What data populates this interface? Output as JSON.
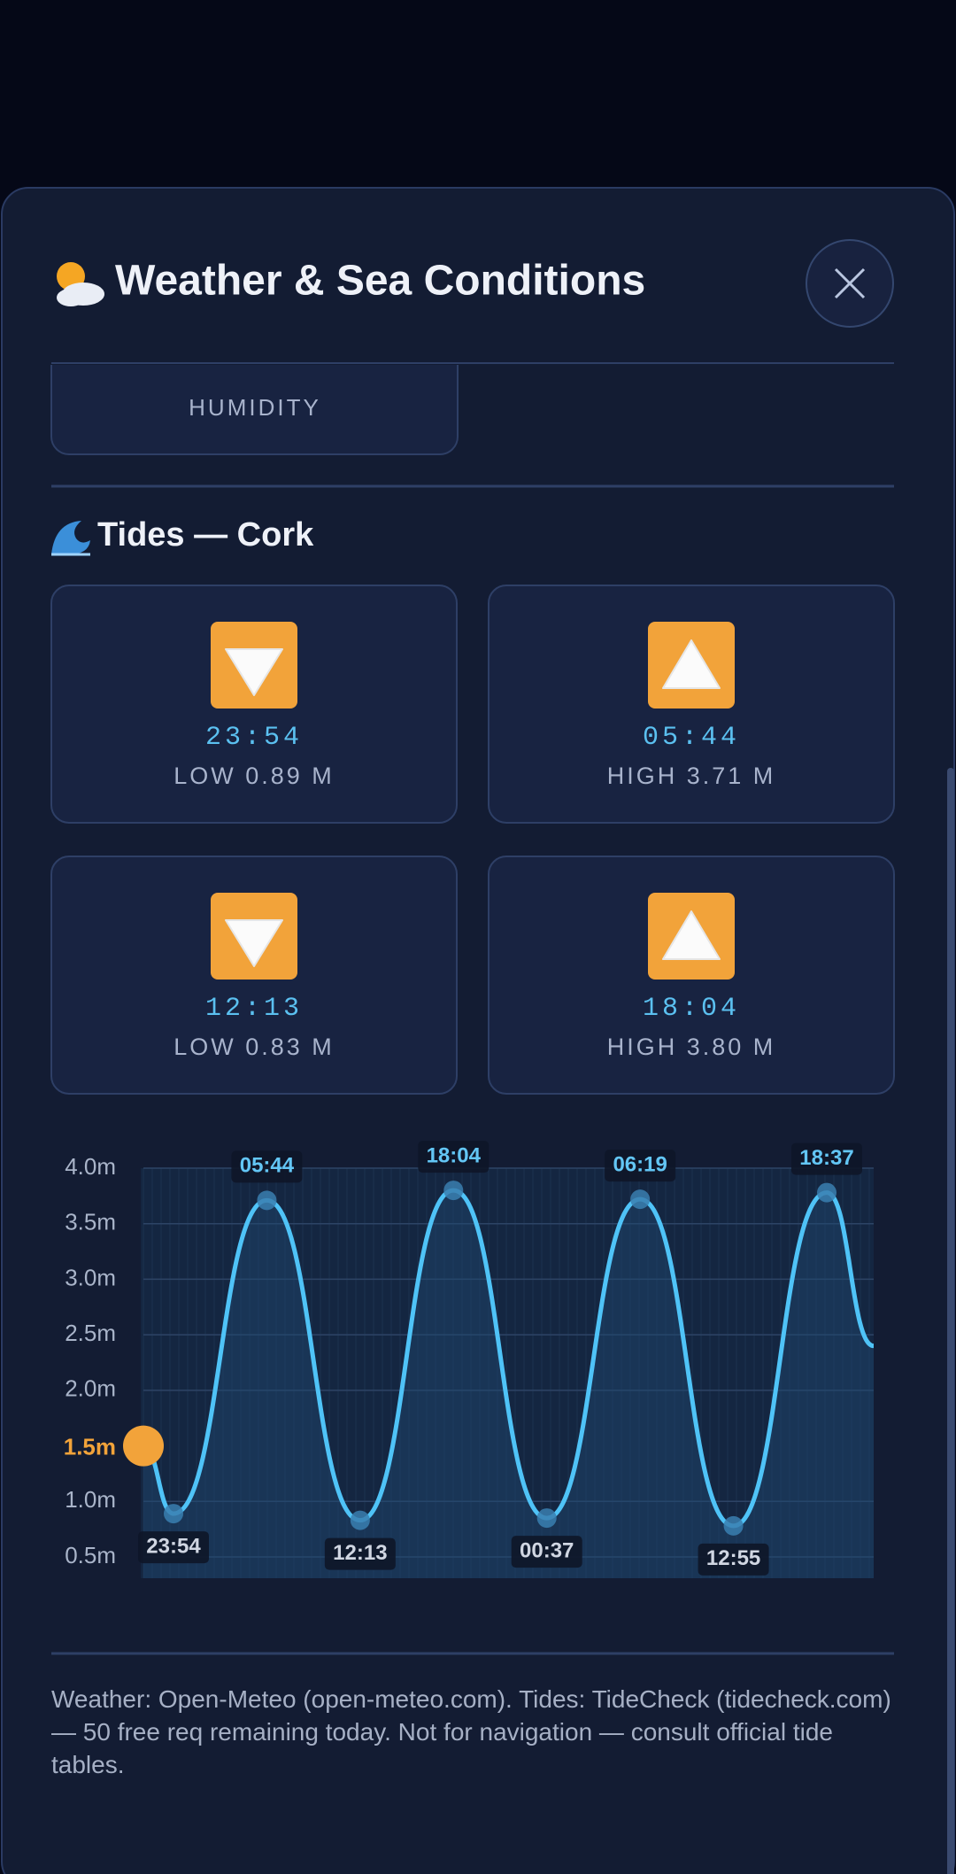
{
  "header": {
    "title": "Weather & Sea Conditions"
  },
  "humidity_card": {
    "label": "HUMIDITY"
  },
  "tides": {
    "title": "Tides — Cork",
    "cards": [
      {
        "time": "23:54",
        "label": "LOW 0.89 M"
      },
      {
        "time": "05:44",
        "label": "HIGH 3.71 M"
      },
      {
        "time": "12:13",
        "label": "LOW 0.83 M"
      },
      {
        "time": "18:04",
        "label": "HIGH 3.80 M"
      }
    ]
  },
  "chart_data": {
    "type": "line",
    "categories": [
      null,
      "23:54",
      "05:44",
      "12:13",
      "18:04",
      "00:37",
      "06:19",
      "12:55",
      "18:37",
      null
    ],
    "values": [
      1.5,
      0.89,
      3.71,
      0.83,
      3.8,
      0.85,
      3.72,
      0.78,
      3.78,
      2.4
    ],
    "color": "#4fc3f7",
    "current_label": "1.5m",
    "ylim": [
      0.5,
      4.0
    ],
    "yticks": [
      {
        "value": 0.5,
        "label": "0.5m"
      },
      {
        "value": 1.0,
        "label": "1.0m"
      },
      {
        "value": 2.0,
        "label": "2.0m"
      },
      {
        "value": 2.5,
        "label": "2.5m"
      },
      {
        "value": 3.0,
        "label": "3.0m"
      },
      {
        "value": 3.5,
        "label": "3.5m"
      },
      {
        "value": 4.0,
        "label": "4.0m"
      }
    ],
    "grid": true
  },
  "footer": {
    "text": "Weather: Open-Meteo (open-meteo.com). Tides: TideCheck (tidecheck.com) — 50 free req remaining today. Not for navigation — consult official tide tables."
  }
}
